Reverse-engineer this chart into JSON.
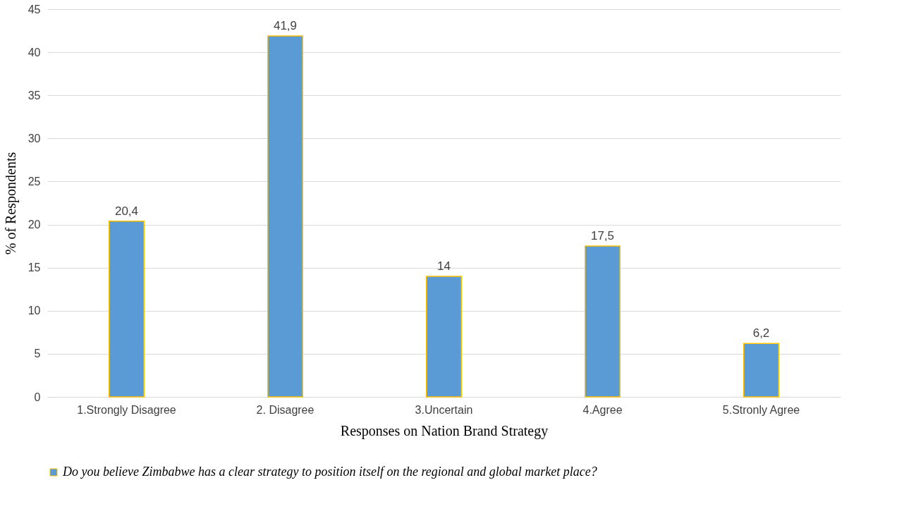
{
  "chart_data": {
    "type": "bar",
    "xlabel": "Responses on Nation Brand Strategy",
    "ylabel": "% of Respondents",
    "categories": [
      "1.Strongly Disagree",
      "2. Disagree",
      "3.Uncertain",
      "4.Agree",
      "5.Stronly Agree"
    ],
    "series": [
      {
        "name": "Do you believe Zimbabwe has a clear strategy to position itself on the regional and global market place?",
        "color": "#5b9bd5",
        "values": [
          20.4,
          41.9,
          14,
          17.5,
          6.2
        ],
        "value_labels": [
          "20,4",
          "41,9",
          "14",
          "17,5",
          "6,2"
        ]
      }
    ],
    "ylim": [
      0,
      45
    ],
    "yticks": [
      0,
      5,
      10,
      15,
      20,
      25,
      30,
      35,
      40,
      45
    ],
    "grid": "y",
    "legend": "bottom"
  }
}
